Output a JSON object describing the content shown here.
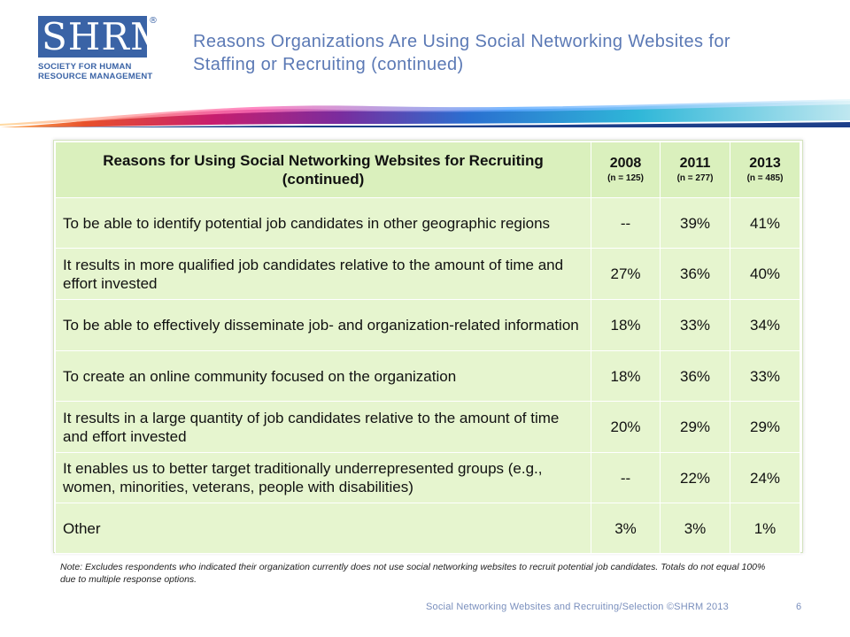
{
  "logo": {
    "mark": "SHRM",
    "registered": "®",
    "line1": "SOCIETY FOR HUMAN",
    "line2": "RESOURCE MANAGEMENT",
    "color": "#3a63a6"
  },
  "title": {
    "line1": "Reasons Organizations Are Using Social Networking Websites for",
    "line2": "Staffing or Recruiting (continued)"
  },
  "table": {
    "header": {
      "reason_label": "Reasons for Using Social Networking Websites for Recruiting (continued)",
      "years": [
        {
          "year": "2008",
          "n": "(n = 125)"
        },
        {
          "year": "2011",
          "n": "(n = 277)"
        },
        {
          "year": "2013",
          "n": "(n = 485)"
        }
      ]
    },
    "rows": [
      {
        "reason": "To be able to identify potential job candidates in other geographic regions",
        "v2008": "--",
        "v2011": "39%",
        "v2013": "41%"
      },
      {
        "reason": "It results in more qualified job candidates relative to the amount of time and effort invested",
        "v2008": "27%",
        "v2011": "36%",
        "v2013": "40%"
      },
      {
        "reason": "To be able to effectively disseminate job- and organization-related information",
        "v2008": "18%",
        "v2011": "33%",
        "v2013": "34%"
      },
      {
        "reason": "To create an online community focused on the organization",
        "v2008": "18%",
        "v2011": "36%",
        "v2013": "33%"
      },
      {
        "reason": "It results in a large quantity of job candidates relative to the amount of time and effort invested",
        "v2008": "20%",
        "v2011": "29%",
        "v2013": "29%"
      },
      {
        "reason": "It enables us to better target traditionally underrepresented groups (e.g., women, minorities, veterans, people with disabilities)",
        "v2008": "--",
        "v2011": "22%",
        "v2013": "24%"
      },
      {
        "reason": "Other",
        "v2008": "3%",
        "v2011": "3%",
        "v2013": "1%"
      }
    ]
  },
  "note": "Note: Excludes respondents who indicated their organization currently does not use social networking websites to recruit potential job candidates.  Totals do not equal 100% due to multiple response options.",
  "footer": {
    "text": "Social Networking Websites and Recruiting/Selection ©SHRM 2013",
    "page": "6"
  }
}
